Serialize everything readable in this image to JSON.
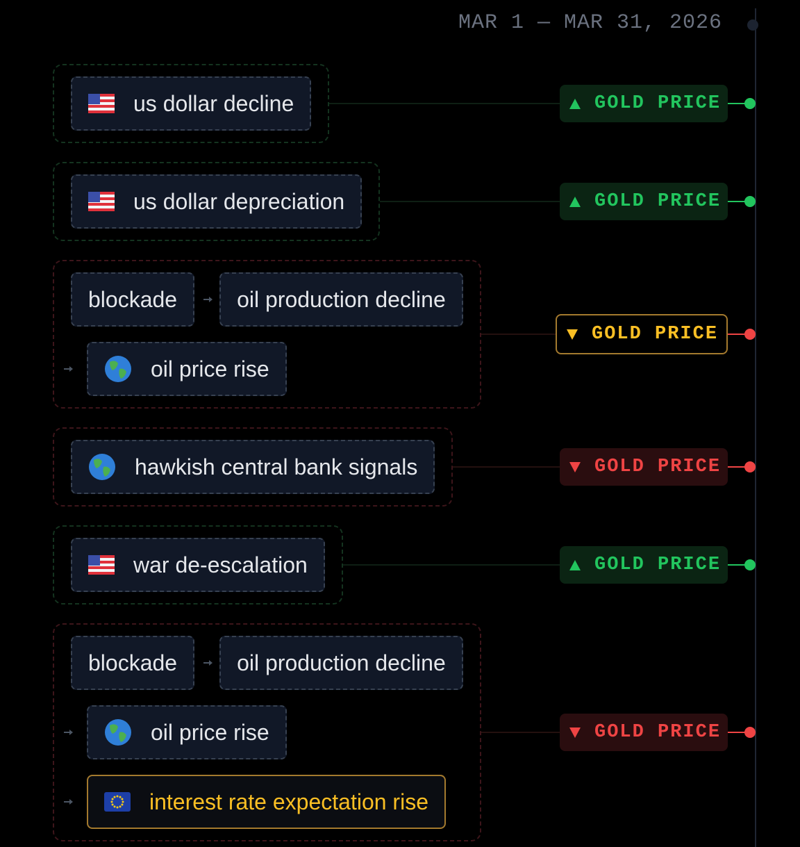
{
  "header": {
    "date_range": "MAR 1 — MAR 31, 2026"
  },
  "events": [
    {
      "tone": "green",
      "rows": [
        [
          {
            "icon": "us",
            "label": "us dollar decline"
          }
        ]
      ],
      "badge": {
        "direction": "up",
        "tone": "green",
        "label": "GOLD PRICE"
      }
    },
    {
      "tone": "green",
      "rows": [
        [
          {
            "icon": "us",
            "label": "us dollar depreciation"
          }
        ]
      ],
      "badge": {
        "direction": "up",
        "tone": "green",
        "label": "GOLD PRICE"
      }
    },
    {
      "tone": "red",
      "rows": [
        [
          {
            "label": "blockade"
          },
          {
            "label": "oil production decline"
          }
        ],
        [
          {
            "icon": "globe",
            "label": "oil price rise"
          }
        ]
      ],
      "badge": {
        "direction": "down",
        "tone": "amber",
        "label": "GOLD PRICE"
      }
    },
    {
      "tone": "red",
      "rows": [
        [
          {
            "icon": "globe",
            "label": "hawkish central bank signals"
          }
        ]
      ],
      "badge": {
        "direction": "down",
        "tone": "red",
        "label": "GOLD PRICE"
      }
    },
    {
      "tone": "green",
      "rows": [
        [
          {
            "icon": "us",
            "label": "war de-escalation"
          }
        ]
      ],
      "badge": {
        "direction": "up",
        "tone": "green",
        "label": "GOLD PRICE"
      }
    },
    {
      "tone": "red",
      "rows": [
        [
          {
            "label": "blockade"
          },
          {
            "label": "oil production decline"
          }
        ],
        [
          {
            "icon": "globe",
            "label": "oil price rise"
          }
        ],
        [
          {
            "icon": "eu",
            "label": "interest rate expectation rise",
            "highlight": true
          }
        ]
      ],
      "badge": {
        "direction": "down",
        "tone": "red",
        "label": "GOLD PRICE"
      }
    }
  ]
}
